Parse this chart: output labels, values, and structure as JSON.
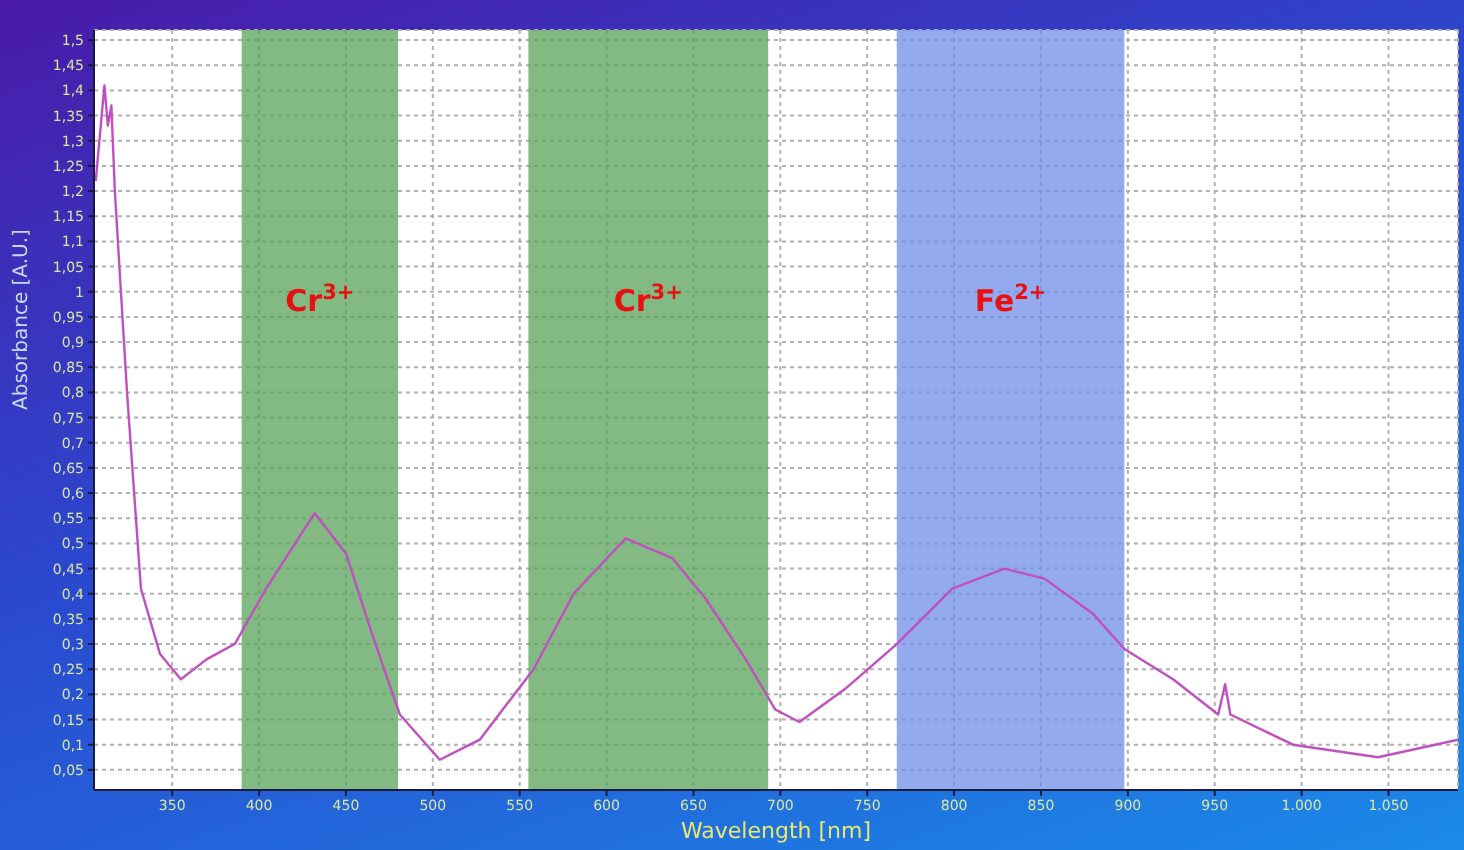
{
  "chart_data": {
    "type": "line",
    "xlabel": "Wavelength [nm]",
    "ylabel": "Absorbance [A.U.]",
    "xlim": [
      305,
      1090
    ],
    "ylim": [
      0.01,
      1.52
    ],
    "xticks": [
      350,
      400,
      450,
      500,
      550,
      600,
      650,
      700,
      750,
      800,
      850,
      900,
      950,
      {
        "value": 1000,
        "label": "1.000"
      },
      {
        "value": 1050,
        "label": "1.050"
      }
    ],
    "yticks": [
      {
        "value": 0.05,
        "label": "0,05"
      },
      {
        "value": 0.1,
        "label": "0,1"
      },
      {
        "value": 0.15,
        "label": "0,15"
      },
      {
        "value": 0.2,
        "label": "0,2"
      },
      {
        "value": 0.25,
        "label": "0,25"
      },
      {
        "value": 0.3,
        "label": "0,3"
      },
      {
        "value": 0.35,
        "label": "0,35"
      },
      {
        "value": 0.4,
        "label": "0,4"
      },
      {
        "value": 0.45,
        "label": "0,45"
      },
      {
        "value": 0.5,
        "label": "0,5"
      },
      {
        "value": 0.55,
        "label": "0,55"
      },
      {
        "value": 0.6,
        "label": "0,6"
      },
      {
        "value": 0.65,
        "label": "0,65"
      },
      {
        "value": 0.7,
        "label": "0,7"
      },
      {
        "value": 0.75,
        "label": "0,75"
      },
      {
        "value": 0.8,
        "label": "0,8"
      },
      {
        "value": 0.85,
        "label": "0,85"
      },
      {
        "value": 0.9,
        "label": "0,9"
      },
      {
        "value": 0.95,
        "label": "0,95"
      },
      1,
      {
        "value": 1.05,
        "label": "1,05"
      },
      {
        "value": 1.1,
        "label": "1,1"
      },
      {
        "value": 1.15,
        "label": "1,15"
      },
      {
        "value": 1.2,
        "label": "1,2"
      },
      {
        "value": 1.25,
        "label": "1,25"
      },
      {
        "value": 1.3,
        "label": "1,3"
      },
      {
        "value": 1.35,
        "label": "1,35"
      },
      {
        "value": 1.4,
        "label": "1,4"
      },
      {
        "value": 1.45,
        "label": "1,45"
      },
      {
        "value": 1.5,
        "label": "1,5"
      }
    ],
    "grid": true,
    "marker": "none",
    "line_style": "solid",
    "series": [
      {
        "color": "#c050c0",
        "x": [
          306,
          311,
          313,
          315,
          317,
          324,
          332,
          343,
          355,
          370,
          386,
          404,
          432,
          450,
          466,
          481,
          504,
          527,
          558,
          581,
          611,
          638,
          657,
          680,
          697,
          711,
          737,
          767,
          799,
          829,
          852,
          880,
          898,
          926,
          952,
          956,
          959,
          995,
          1044,
          1090
        ],
        "values": [
          1.22,
          1.41,
          1.33,
          1.37,
          1.2,
          0.8,
          0.41,
          0.28,
          0.23,
          0.27,
          0.3,
          0.41,
          0.56,
          0.48,
          0.31,
          0.16,
          0.07,
          0.11,
          0.25,
          0.4,
          0.51,
          0.47,
          0.39,
          0.27,
          0.17,
          0.145,
          0.21,
          0.3,
          0.41,
          0.45,
          0.43,
          0.36,
          0.29,
          0.23,
          0.16,
          0.22,
          0.16,
          0.1,
          0.075,
          0.11
        ]
      }
    ],
    "bands": [
      {
        "axis": "x",
        "from": 390,
        "to": 480,
        "label": "Cr$^{3+}$",
        "color": "#5aa35a"
      },
      {
        "axis": "x",
        "from": 555,
        "to": 693,
        "label": "Cr$^{3+}$",
        "color": "#5aa35a"
      },
      {
        "axis": "x",
        "from": 767,
        "to": 898,
        "label": "Fe$^{2+}$",
        "color": "#6f8fe8"
      }
    ]
  }
}
